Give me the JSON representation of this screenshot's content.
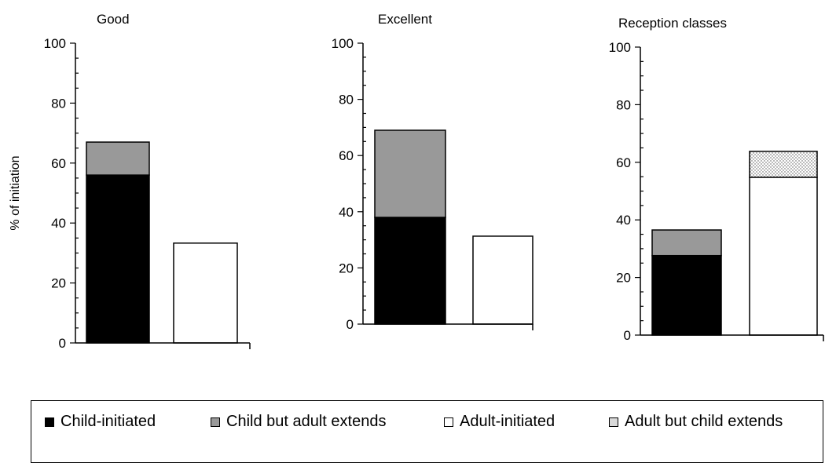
{
  "chart_data": [
    {
      "type": "bar",
      "title": "Good",
      "ylabel": "% of initiation",
      "ylim": [
        0,
        100
      ],
      "yticks": [
        "0",
        "20",
        "40",
        "60",
        "80",
        "100"
      ],
      "bars": [
        {
          "segments": [
            {
              "series": "Child-initiated",
              "value": 56
            },
            {
              "series": "Child but adult extends",
              "value": 11
            }
          ]
        },
        {
          "segments": [
            {
              "series": "Adult-initiated",
              "value": 33.3
            }
          ]
        }
      ]
    },
    {
      "type": "bar",
      "title": "Excellent",
      "ylabel": "",
      "ylim": [
        0,
        100
      ],
      "yticks": [
        "0",
        "20",
        "40",
        "60",
        "80",
        "100"
      ],
      "bars": [
        {
          "segments": [
            {
              "series": "Child-initiated",
              "value": 38
            },
            {
              "series": "Child but adult extends",
              "value": 31
            }
          ]
        },
        {
          "segments": [
            {
              "series": "Adult-initiated",
              "value": 31.3
            }
          ]
        }
      ]
    },
    {
      "type": "bar",
      "title": "Reception classes",
      "ylabel": "",
      "ylim": [
        0,
        100
      ],
      "yticks": [
        "0",
        "20",
        "40",
        "60",
        "80",
        "100"
      ],
      "bars": [
        {
          "segments": [
            {
              "series": "Child-initiated",
              "value": 27.6
            },
            {
              "series": "Child but adult extends",
              "value": 8.9
            }
          ]
        },
        {
          "segments": [
            {
              "series": "Adult-initiated",
              "value": 54.8
            },
            {
              "series": "Adult but child extends",
              "value": 9
            }
          ]
        }
      ]
    }
  ],
  "legend": {
    "items": [
      {
        "label": "Child-initiated",
        "color": "#000000"
      },
      {
        "label": "Child but adult extends",
        "color": "#999999"
      },
      {
        "label": "Adult-initiated",
        "color": "#ffffff"
      },
      {
        "label": "Adult but child extends",
        "color": "#d9d9d9"
      }
    ]
  },
  "colors": {
    "Child-initiated": "#000000",
    "Child but adult extends": "#999999",
    "Adult-initiated": "#ffffff",
    "Adult but child extends": "#d9d9d9"
  }
}
